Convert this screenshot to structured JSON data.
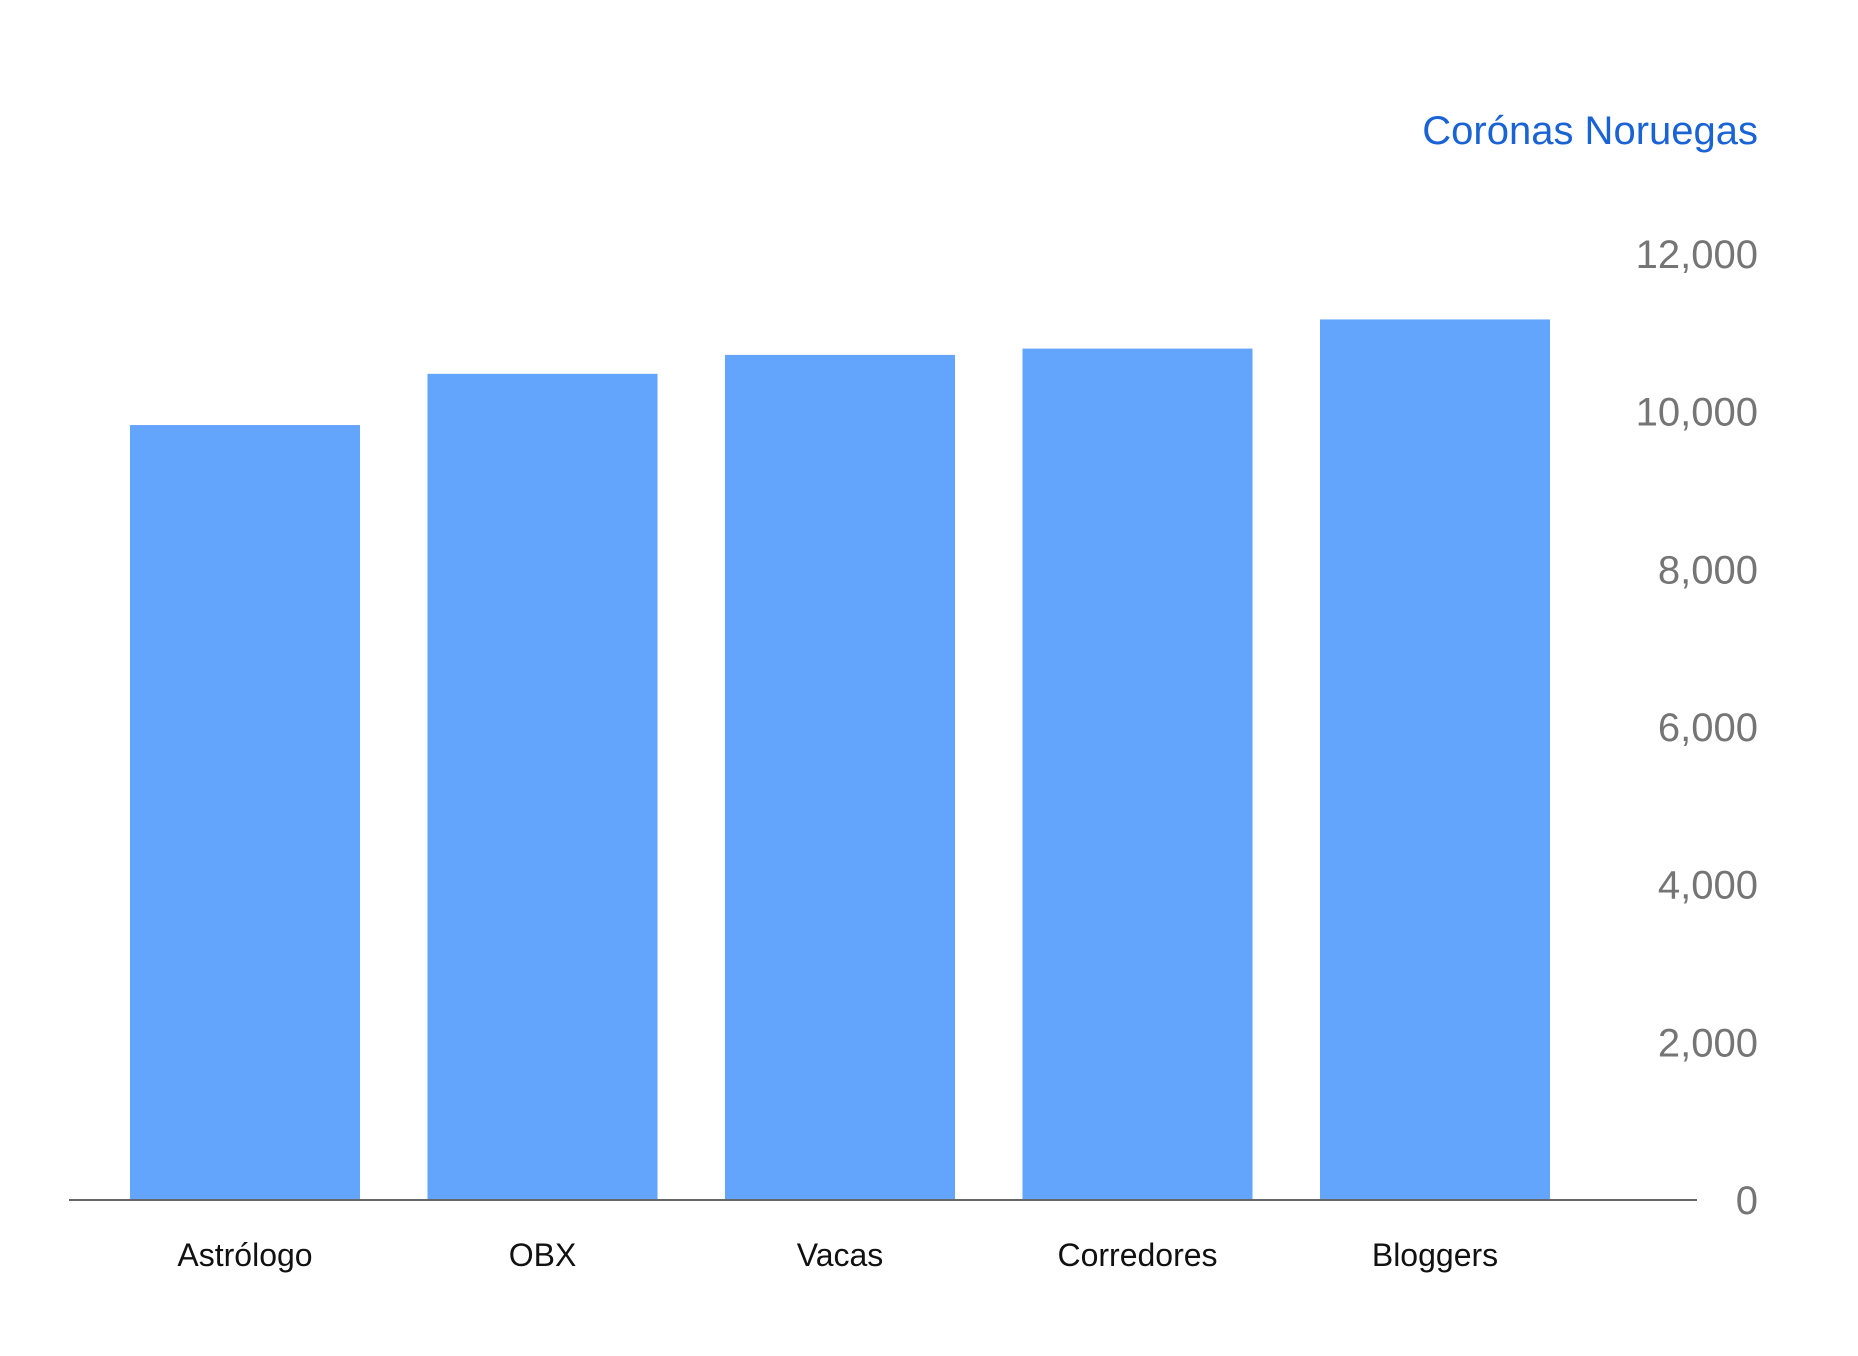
{
  "chart_data": {
    "type": "bar",
    "title": "",
    "xlabel": "",
    "ylabel": "Corónas Noruegas",
    "categories": [
      "Astrólogo",
      "OBX",
      "Vacas",
      "Corredores",
      "Bloggers"
    ],
    "values": [
      9830,
      10480,
      10720,
      10800,
      11170
    ],
    "ylim": [
      0,
      12000
    ],
    "yticks": [
      0,
      2000,
      4000,
      6000,
      8000,
      10000,
      12000
    ],
    "ytick_labels": [
      "0",
      "2,000",
      "4,000",
      "6,000",
      "8,000",
      "10,000",
      "12,000"
    ],
    "y_axis_position": "right",
    "grid": false,
    "legend": "none"
  },
  "colors": {
    "bar": "#63a4fd",
    "axis_title": "#1a63d4",
    "tick_label": "#757575",
    "category_label": "#111111",
    "baseline": "#666666"
  }
}
